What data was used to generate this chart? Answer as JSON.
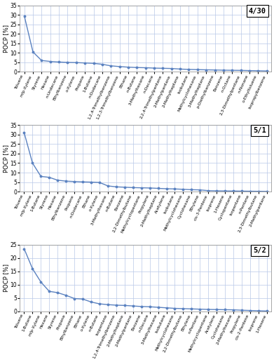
{
  "panels": [
    {
      "label": "4/30",
      "ylim": [
        0,
        35
      ],
      "yticks": [
        0,
        5,
        10,
        15,
        20,
        25,
        30,
        35
      ],
      "categories": [
        "Toluene",
        "m/p-Xylene",
        "Styrene",
        "Hexane",
        "n-Undecane",
        "Ethylbenzene",
        "o-Xylene",
        "Propane",
        "1-Butane",
        "n-Dodecane",
        "1,2,4-Trimethylbenzene",
        "1,2,3-Trimethylbenzene",
        "Ethane",
        "n-Butane",
        "3-Methylhexane",
        "n-Decane",
        "2,2,4-Trimethylpentane",
        "2-Methylpentane",
        "2-Methylheptane",
        "Isobutane",
        "Methylcyclohexane",
        "3-Methylheptane",
        "p-Diethylbenzene",
        "Benzene",
        "n-Octane",
        "2,3-Dimethylpentane",
        "n-Nonane",
        "o-Ethyltoluene",
        "Isopropylbenzene"
      ],
      "values": [
        29.5,
        10.5,
        6.0,
        5.5,
        5.2,
        5.0,
        4.9,
        4.7,
        4.5,
        4.0,
        3.2,
        2.8,
        2.5,
        2.3,
        2.2,
        2.0,
        1.9,
        1.8,
        1.5,
        1.3,
        1.2,
        1.1,
        1.0,
        0.9,
        0.85,
        0.8,
        0.7,
        0.6,
        0.5
      ]
    },
    {
      "label": "5/1",
      "ylim": [
        0,
        35
      ],
      "yticks": [
        0,
        5,
        10,
        15,
        20,
        25,
        30,
        35
      ],
      "categories": [
        "Toluene",
        "m/p-Xylene",
        "1-Butane",
        "Styrene",
        "Hexane",
        "Ethylbenzene",
        "Propane",
        "n-Dodecane",
        "Ethane",
        "o-Xylene",
        "3-Methylhexane",
        "n-Butane",
        "Benzene",
        "2,2-Dimethylbutane",
        "Methylcyclopentane",
        "Propylene",
        "2-Methylheptane",
        "Acetylene",
        "Isobutane",
        "Methylcyclohexane",
        "Cyclohexane",
        "Ethylene",
        "cis-3-Pentene",
        "Isoprene",
        "1-Hexene",
        "Cyclopentane",
        "Isopentane",
        "n-Pentane",
        "2,3-Dimethylbutane",
        "2-Methylpentane"
      ],
      "values": [
        31.0,
        15.0,
        8.0,
        7.5,
        6.0,
        5.5,
        5.3,
        5.1,
        5.0,
        4.8,
        3.0,
        2.5,
        2.3,
        2.1,
        2.0,
        1.9,
        1.7,
        1.5,
        1.4,
        1.2,
        1.0,
        0.9,
        0.5,
        0.4,
        0.35,
        0.3,
        0.25,
        0.2,
        0.15,
        0.1
      ]
    },
    {
      "label": "5/2",
      "ylim": [
        0,
        25
      ],
      "yticks": [
        0,
        5,
        10,
        15,
        20,
        25
      ],
      "categories": [
        "Toluene",
        "1-Butane",
        "m/p-Xylene",
        "Hexane",
        "Styrene",
        "Propane",
        "Ethylbenzene",
        "Ethane",
        "o-Xylene",
        "n-Butane",
        "Isopentane",
        "1,2,4-Trimethylbenzene",
        "2-Methylheptane",
        "2-Methylpentane",
        "Benzene",
        "n-Decane",
        "3-Methylhexane",
        "Isobutane",
        "Methylcyclohexane",
        "2,2-Dimethylbutane",
        "Ethylene",
        "n-Pentane",
        "Methylcyclopentane",
        "Acetylene",
        "Cyclohexane",
        "2-Methylhexane",
        "Propylene",
        "cis-2-Pentene",
        "Isoprene",
        "1-Hexene"
      ],
      "values": [
        23.5,
        16.0,
        11.0,
        7.5,
        7.0,
        6.0,
        4.8,
        4.6,
        3.5,
        2.8,
        2.5,
        2.3,
        2.2,
        2.0,
        1.8,
        1.7,
        1.5,
        1.3,
        1.1,
        1.0,
        0.9,
        0.8,
        0.7,
        0.65,
        0.6,
        0.55,
        0.4,
        0.3,
        0.2,
        0.1
      ]
    }
  ],
  "line_color": "#5B82C0",
  "line_width": 1.0,
  "marker": "o",
  "marker_size": 1.8,
  "ylabel": "POCP [%]",
  "grid_color": "#B8C8E8",
  "bg_color": "#FFFFFF",
  "label_fontsize": 4.2,
  "ylabel_fontsize": 6.0,
  "ytick_fontsize": 5.5,
  "title_fontsize": 7.5,
  "label_rotation": 65
}
